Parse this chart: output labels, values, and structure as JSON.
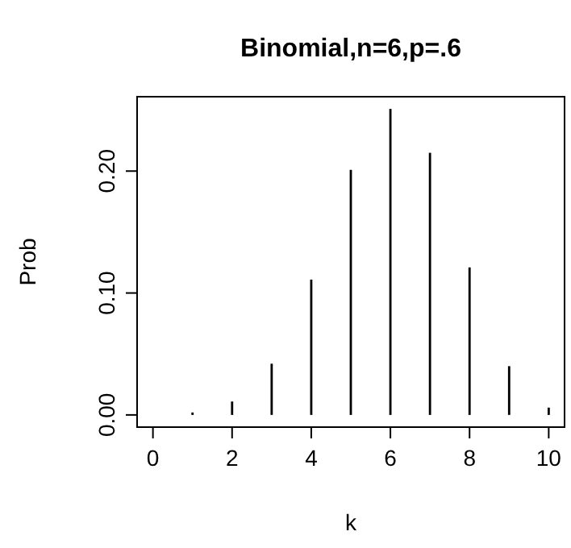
{
  "chart_data": {
    "type": "bar",
    "title": "Binomial,n=6,p=.6",
    "xlabel": "k",
    "ylabel": "Prob",
    "x": [
      0,
      1,
      2,
      3,
      4,
      5,
      6,
      7,
      8,
      9,
      10
    ],
    "values": [
      0,
      0.002,
      0.011,
      0.042,
      0.111,
      0.201,
      0.251,
      0.215,
      0.121,
      0.04,
      0.006
    ],
    "color": "#000000",
    "xlim": [
      -0.4,
      10.4
    ],
    "ylim": [
      -0.01,
      0.261
    ],
    "xticks": [
      0,
      2,
      4,
      6,
      8,
      10
    ],
    "yticks": [
      {
        "value": 0,
        "label": "0.00"
      },
      {
        "value": 0.1,
        "label": "0.10"
      },
      {
        "value": 0.2,
        "label": "0.20"
      }
    ],
    "grid": false
  }
}
